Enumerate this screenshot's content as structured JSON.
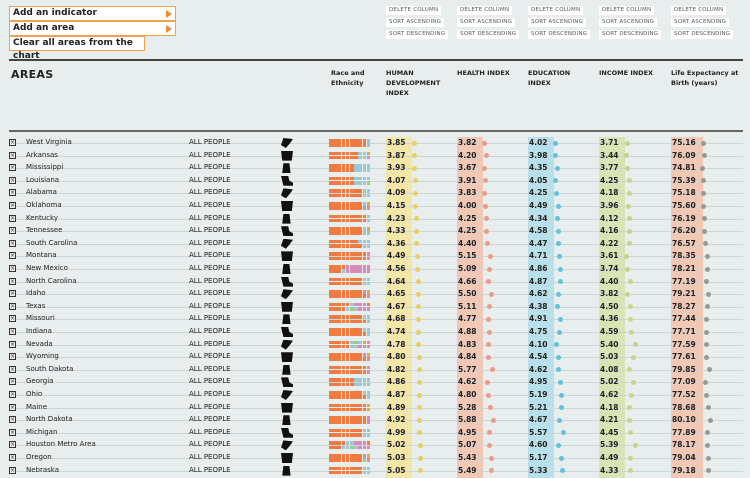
{
  "menu": {
    "add_indicator": "Add an indicator",
    "add_area": "Add an area",
    "clear_areas": "Clear all areas from the chart"
  },
  "column_controls": {
    "delete": "DELETE COLUMN",
    "sort_asc": "SORT ASCENDING",
    "sort_desc": "SORT DESCENDING"
  },
  "header": {
    "areas": "AREAS",
    "race": "Race and Ethnicity",
    "columns": [
      {
        "label": "HUMAN DEVELOPMENT INDEX",
        "color": "#f2e6a8",
        "dot": "#e8cf60"
      },
      {
        "label": "HEALTH INDEX",
        "color": "#f1c7b6",
        "dot": "#ee9a84"
      },
      {
        "label": "EDUCATION INDEX",
        "color": "#b8e0ea",
        "dot": "#5ec3dc"
      },
      {
        "label": "INCOME INDEX",
        "color": "#d8e4b4",
        "dot": "#c4d688"
      },
      {
        "label": "Life Expectancy at Birth (years)",
        "color": "#f1c7b6",
        "dot": "#999999"
      }
    ]
  },
  "population_label": "ALL PEOPLE",
  "colors": {
    "accent_orange": "#f08a30",
    "waffle_white": "#f07a40",
    "waffle_black": "#9cc8d8",
    "waffle_latino": "#d88ab8",
    "waffle_asian": "#d8b040",
    "waffle_other": "#98d078"
  },
  "rows": [
    {
      "name": "West Virginia",
      "hdi": "3.85",
      "health": "3.82",
      "edu": "4.02",
      "income": "3.71",
      "life": "75.16"
    },
    {
      "name": "Arkansas",
      "hdi": "3.87",
      "health": "4.20",
      "edu": "3.98",
      "income": "3.44",
      "life": "76.09"
    },
    {
      "name": "Mississippi",
      "hdi": "3.93",
      "health": "3.67",
      "edu": "4.35",
      "income": "3.77",
      "life": "74.81"
    },
    {
      "name": "Louisiana",
      "hdi": "4.07",
      "health": "3.91",
      "edu": "4.05",
      "income": "4.25",
      "life": "75.39"
    },
    {
      "name": "Alabama",
      "hdi": "4.09",
      "health": "3.83",
      "edu": "4.25",
      "income": "4.18",
      "life": "75.18"
    },
    {
      "name": "Oklahoma",
      "hdi": "4.15",
      "health": "4.00",
      "edu": "4.49",
      "income": "3.96",
      "life": "75.60"
    },
    {
      "name": "Kentucky",
      "hdi": "4.23",
      "health": "4.25",
      "edu": "4.34",
      "income": "4.12",
      "life": "76.19"
    },
    {
      "name": "Tennessee",
      "hdi": "4.33",
      "health": "4.25",
      "edu": "4.58",
      "income": "4.16",
      "life": "76.20"
    },
    {
      "name": "South Carolina",
      "hdi": "4.36",
      "health": "4.40",
      "edu": "4.47",
      "income": "4.22",
      "life": "76.57"
    },
    {
      "name": "Montana",
      "hdi": "4.49",
      "health": "5.15",
      "edu": "4.71",
      "income": "3.61",
      "life": "78.35"
    },
    {
      "name": "New Mexico",
      "hdi": "4.56",
      "health": "5.09",
      "edu": "4.86",
      "income": "3.74",
      "life": "78.21"
    },
    {
      "name": "North Carolina",
      "hdi": "4.64",
      "health": "4.66",
      "edu": "4.87",
      "income": "4.40",
      "life": "77.19"
    },
    {
      "name": "Idaho",
      "hdi": "4.65",
      "health": "5.50",
      "edu": "4.62",
      "income": "3.82",
      "life": "79.21"
    },
    {
      "name": "Texas",
      "hdi": "4.67",
      "health": "5.11",
      "edu": "4.38",
      "income": "4.50",
      "life": "78.27"
    },
    {
      "name": "Missouri",
      "hdi": "4.68",
      "health": "4.77",
      "edu": "4.91",
      "income": "4.36",
      "life": "77.44"
    },
    {
      "name": "Indiana",
      "hdi": "4.74",
      "health": "4.88",
      "edu": "4.75",
      "income": "4.59",
      "life": "77.71"
    },
    {
      "name": "Nevada",
      "hdi": "4.78",
      "health": "4.83",
      "edu": "4.10",
      "income": "5.40",
      "life": "77.59"
    },
    {
      "name": "Wyoming",
      "hdi": "4.80",
      "health": "4.84",
      "edu": "4.54",
      "income": "5.03",
      "life": "77.61"
    },
    {
      "name": "South Dakota",
      "hdi": "4.82",
      "health": "5.77",
      "edu": "4.62",
      "income": "4.08",
      "life": "79.85"
    },
    {
      "name": "Georgia",
      "hdi": "4.86",
      "health": "4.62",
      "edu": "4.95",
      "income": "5.02",
      "life": "77.09"
    },
    {
      "name": "Ohio",
      "hdi": "4.87",
      "health": "4.80",
      "edu": "5.19",
      "income": "4.62",
      "life": "77.52"
    },
    {
      "name": "Maine",
      "hdi": "4.89",
      "health": "5.28",
      "edu": "5.21",
      "income": "4.18",
      "life": "78.68"
    },
    {
      "name": "North Dakota",
      "hdi": "4.92",
      "health": "5.88",
      "edu": "4.67",
      "income": "4.21",
      "life": "80.10"
    },
    {
      "name": "Michigan",
      "hdi": "4.99",
      "health": "4.95",
      "edu": "5.57",
      "income": "4.45",
      "life": "77.89"
    },
    {
      "name": "Houston Metro Area",
      "hdi": "5.02",
      "health": "5.07",
      "edu": "4.60",
      "income": "5.39",
      "life": "78.17"
    },
    {
      "name": "Oregon",
      "hdi": "5.03",
      "health": "5.43",
      "edu": "5.17",
      "income": "4.49",
      "life": "79.04"
    },
    {
      "name": "Nebraska",
      "hdi": "5.05",
      "health": "5.49",
      "edu": "5.33",
      "income": "4.33",
      "life": "79.18"
    }
  ]
}
